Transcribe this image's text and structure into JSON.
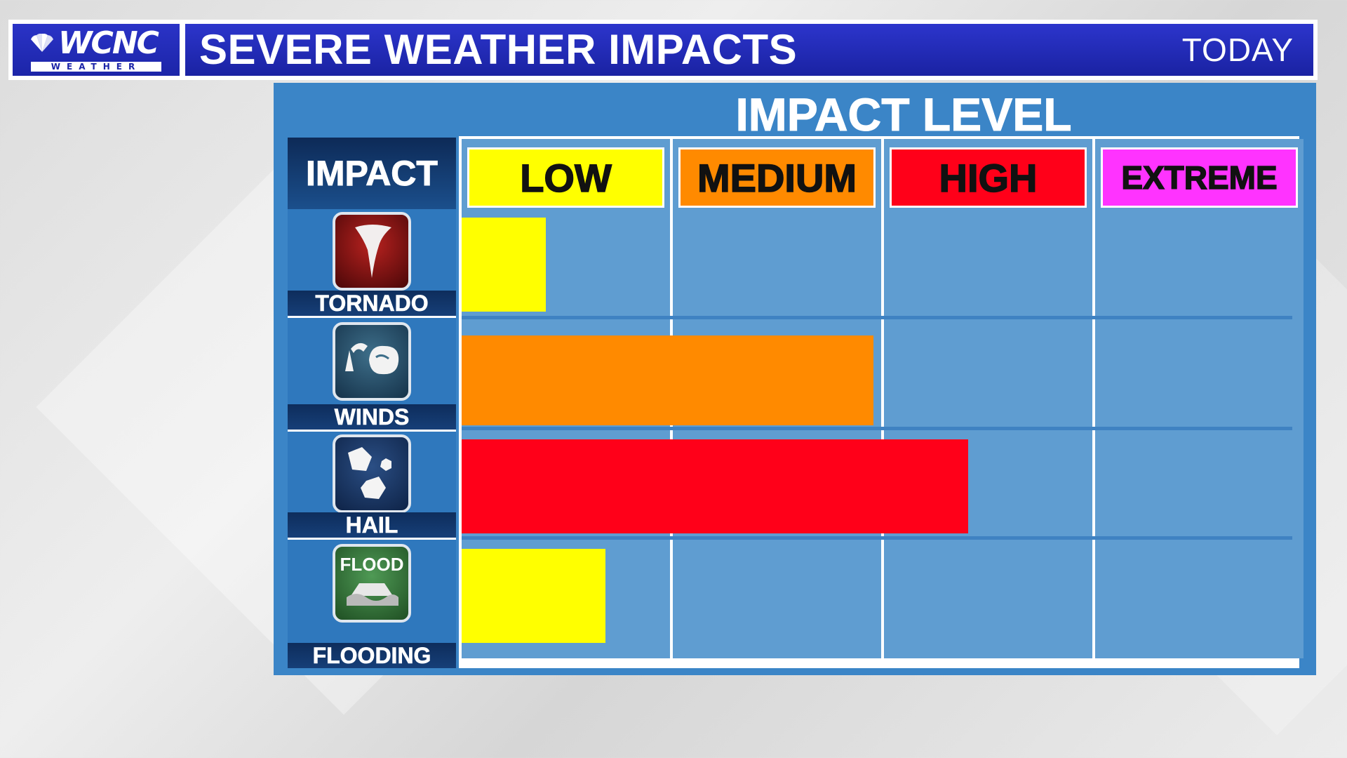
{
  "header": {
    "logo_main": "WCNC",
    "logo_sub": "WEATHER",
    "title": "SEVERE WEATHER IMPACTS",
    "timeframe": "TODAY"
  },
  "panel": {
    "title": "IMPACT LEVEL",
    "impact_header": "IMPACT"
  },
  "colors": {
    "low": "#ffff00",
    "medium": "#ff8a00",
    "high": "#ff0019",
    "extreme": "#ff33ff"
  },
  "chart_data": {
    "type": "bar",
    "orientation": "horizontal",
    "title": "IMPACT LEVEL",
    "levels": [
      "LOW",
      "MEDIUM",
      "HIGH",
      "EXTREME"
    ],
    "categories": [
      "TORNADO",
      "WINDS",
      "HAIL",
      "FLOODING"
    ],
    "icons": [
      "tornado-icon",
      "wind-icon",
      "hail-icon",
      "flood-icon"
    ],
    "values": [
      0.4,
      1.95,
      2.4,
      0.68
    ],
    "xlim": [
      0,
      4
    ]
  }
}
